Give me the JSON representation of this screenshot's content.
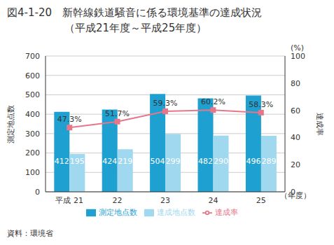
{
  "chart_data": {
    "type": "bar",
    "title": "図4-1-20　新幹線鉄道騒音に係る環境基準の達成状況",
    "subtitle": "（平成21年度～平成25年度）",
    "source": "資料：環境省",
    "categories": [
      "平成 21",
      "22",
      "23",
      "24",
      "25"
    ],
    "x_label": "（年度）",
    "y_label": "測定地点数",
    "y2_label": "達成率",
    "y2_unit": "(%)",
    "series": [
      {
        "name": "測定地点数",
        "type": "bar",
        "color": "#1ea0d0",
        "values": [
          412,
          424,
          504,
          482,
          496
        ]
      },
      {
        "name": "達成地点数",
        "type": "bar",
        "color": "#9fd8ef",
        "values": [
          195,
          219,
          299,
          290,
          289
        ]
      },
      {
        "name": "達成率",
        "type": "line",
        "axis": "y2",
        "color": "#e8768a",
        "marker": "square",
        "values": [
          47.3,
          51.7,
          59.3,
          60.2,
          58.3
        ],
        "value_labels": [
          "47.3%",
          "51.7%",
          "59.3%",
          "60.2%",
          "58.3%"
        ]
      }
    ],
    "ylim": [
      0,
      700
    ],
    "yticks": [
      0,
      100,
      200,
      300,
      400,
      500,
      600,
      700
    ],
    "y2lim": [
      0,
      100
    ],
    "y2ticks": [
      0,
      20,
      40,
      60,
      80,
      100
    ],
    "grid": true,
    "data_labels": true,
    "legend": "bottom"
  }
}
